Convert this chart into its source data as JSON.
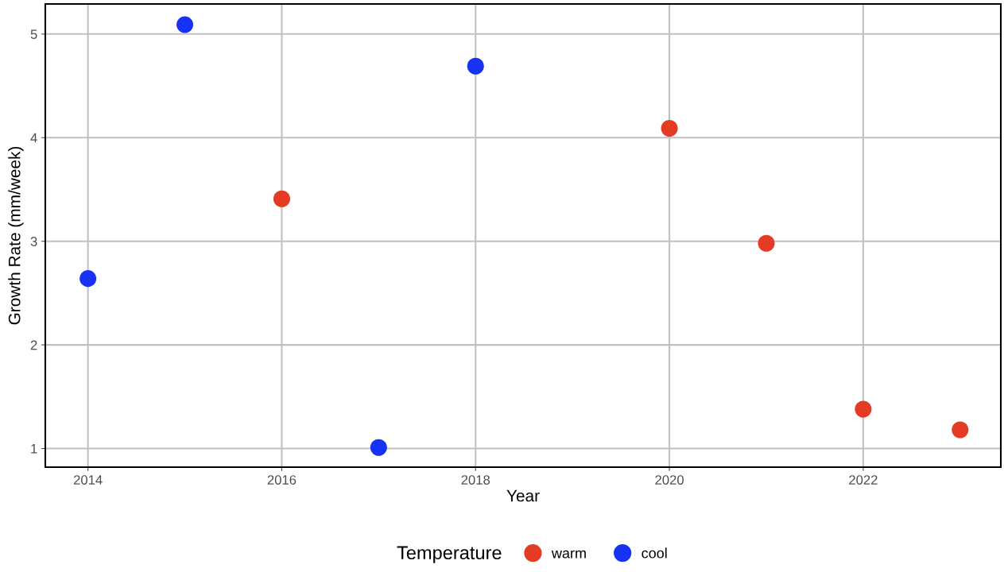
{
  "chart_data": {
    "type": "scatter",
    "xlabel": "Year",
    "ylabel": "Growth Rate (mm/week)",
    "legend_title": "Temperature",
    "series": [
      {
        "name": "warm",
        "color": "#e33b24",
        "x": [
          2016,
          2020,
          2021,
          2022,
          2023
        ],
        "values": [
          3.41,
          4.09,
          2.98,
          1.38,
          1.18
        ]
      },
      {
        "name": "cool",
        "color": "#1632f5",
        "x": [
          2014,
          2015,
          2017,
          2018
        ],
        "values": [
          2.64,
          5.09,
          1.01,
          4.69
        ]
      }
    ],
    "xlim": [
      2013.56,
      2023.42
    ],
    "xticks": [
      2014,
      2016,
      2018,
      2020,
      2022
    ],
    "ylim": [
      0.82,
      5.29
    ],
    "yticks": [
      1,
      2,
      3,
      4,
      5
    ],
    "grid": true,
    "legend": "bottom",
    "marker": "circle"
  }
}
